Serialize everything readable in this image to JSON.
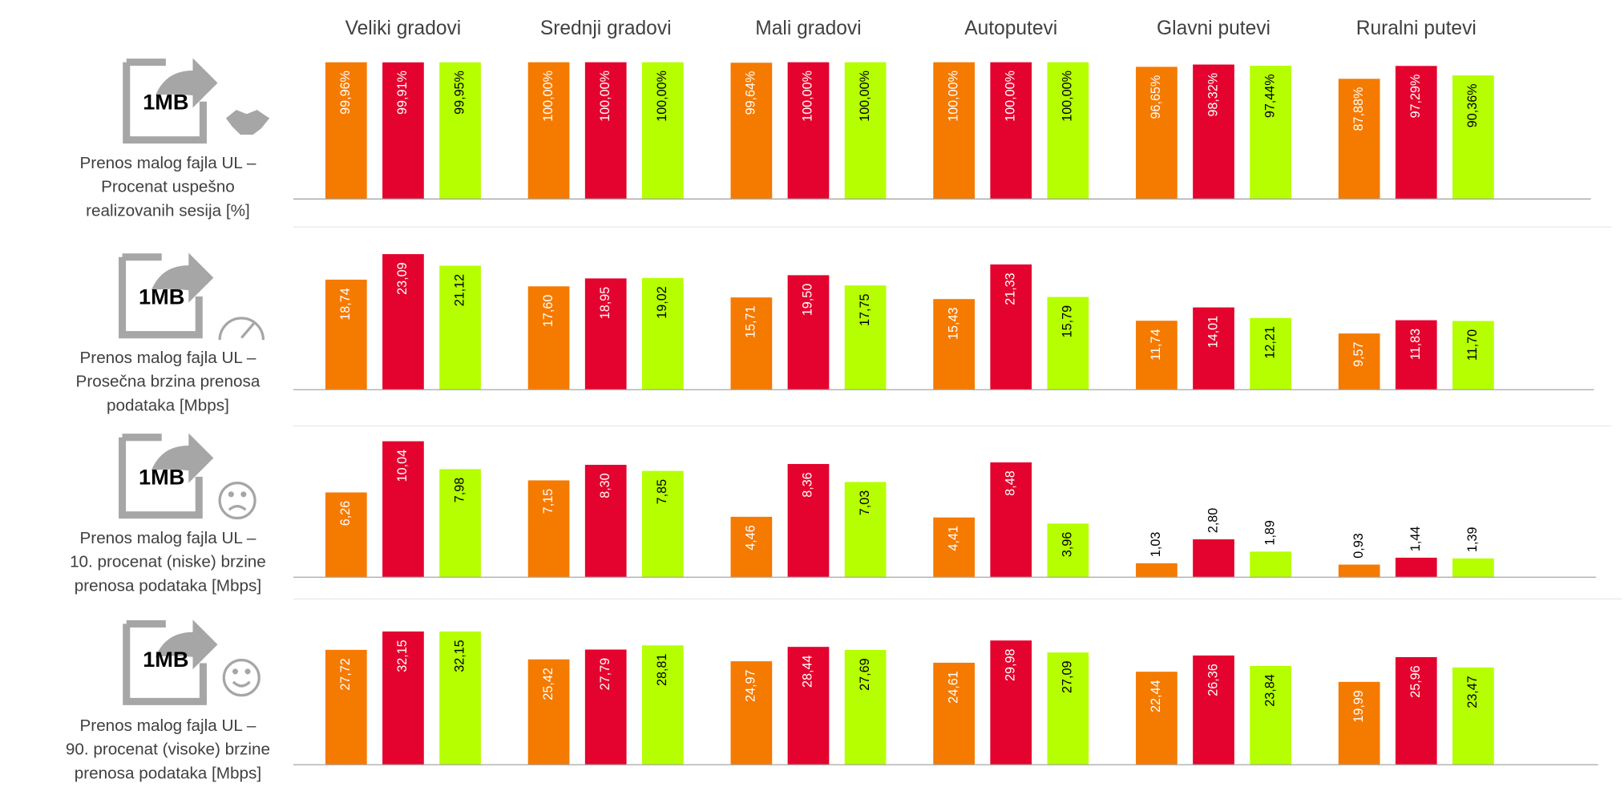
{
  "chart_data": [
    {
      "type": "bar",
      "categories": [
        "Veliki gradovi",
        "Srednji gradovi",
        "Mali gradovi",
        "Autoputevi",
        "Glavni putevi",
        "Ruralni putevi"
      ],
      "icon_label": "1MB",
      "title": [
        "Prenos malog fajla UL –",
        "Procenat uspešno",
        "realizovanih sesija [%]"
      ],
      "ylim": [
        0,
        100
      ],
      "series": [
        {
          "color": "#F57A00",
          "label_color": "#ffffff",
          "values": [
            99.96,
            100,
            99.64,
            100,
            96.65,
            87.88
          ],
          "value_labels": [
            "99,96%",
            "100,00%",
            "99,64%",
            "100,00%",
            "96,65%",
            "87,88%"
          ]
        },
        {
          "color": "#E4032E",
          "label_color": "#ffffff",
          "values": [
            99.91,
            100,
            100,
            100,
            98.32,
            97.29
          ],
          "value_labels": [
            "99,91%",
            "100,00%",
            "100,00%",
            "100,00%",
            "98,32%",
            "97,29%"
          ]
        },
        {
          "color": "#B5FF00",
          "label_color": "#000000",
          "values": [
            99.95,
            100,
            100,
            100,
            97.44,
            90.36
          ],
          "value_labels": [
            "99,95%",
            "100,00%",
            "100,00%",
            "100,00%",
            "97,44%",
            "90,36%"
          ]
        }
      ]
    },
    {
      "type": "bar",
      "icon_label": "1MB",
      "title": [
        "Prenos malog fajla UL –",
        "Prosečna brzina prenosa",
        "podataka [Mbps]"
      ],
      "ylim": [
        0,
        23.3
      ],
      "series": [
        {
          "color": "#F57A00",
          "label_color": "#ffffff",
          "values": [
            18.74,
            17.6,
            15.71,
            15.43,
            11.74,
            9.57
          ],
          "value_labels": [
            "18,74",
            "17,60",
            "15,71",
            "15,43",
            "11,74",
            "9,57"
          ]
        },
        {
          "color": "#E4032E",
          "label_color": "#ffffff",
          "values": [
            23.09,
            18.95,
            19.5,
            21.33,
            14.01,
            11.83
          ],
          "value_labels": [
            "23,09",
            "18,95",
            "19,50",
            "21,33",
            "14,01",
            "11,83"
          ]
        },
        {
          "color": "#B5FF00",
          "label_color": "#000000",
          "values": [
            21.12,
            19.02,
            17.75,
            15.79,
            12.21,
            11.7
          ],
          "value_labels": [
            "21,12",
            "19,02",
            "17,75",
            "15,79",
            "12,21",
            "11,70"
          ]
        }
      ]
    },
    {
      "type": "bar",
      "icon_label": "1MB",
      "title": [
        "Prenos malog fajla UL –",
        "10. procenat (niske) brzine",
        "prenosa podataka [Mbps]"
      ],
      "ylim": [
        0,
        10.1
      ],
      "series": [
        {
          "color": "#F57A00",
          "label_color": "#ffffff",
          "values": [
            6.26,
            7.15,
            4.46,
            4.41,
            1.03,
            0.93
          ],
          "value_labels": [
            "6,26",
            "7,15",
            "4,46",
            "4,41",
            "1,03",
            "0,93"
          ]
        },
        {
          "color": "#E4032E",
          "label_color": "#ffffff",
          "values": [
            10.04,
            8.3,
            8.36,
            8.48,
            2.8,
            1.44
          ],
          "value_labels": [
            "10,04",
            "8,30",
            "8,36",
            "8,48",
            "2,80",
            "1,44"
          ]
        },
        {
          "color": "#B5FF00",
          "label_color": "#000000",
          "values": [
            7.98,
            7.85,
            7.03,
            3.96,
            1.89,
            1.39
          ],
          "value_labels": [
            "7,98",
            "7,85",
            "7,03",
            "3,96",
            "1,89",
            "1,39"
          ]
        }
      ]
    },
    {
      "type": "bar",
      "icon_label": "1MB",
      "title": [
        "Prenos malog fajla UL –",
        "90. procenat (visoke) brzine",
        "prenosa podataka [Mbps]"
      ],
      "ylim": [
        0,
        33
      ],
      "series": [
        {
          "color": "#F57A00",
          "label_color": "#ffffff",
          "values": [
            27.72,
            25.42,
            24.97,
            24.61,
            22.44,
            19.99
          ],
          "value_labels": [
            "27,72",
            "25,42",
            "24,97",
            "24,61",
            "22,44",
            "19,99"
          ]
        },
        {
          "color": "#E4032E",
          "label_color": "#ffffff",
          "values": [
            32.15,
            27.79,
            28.44,
            29.98,
            26.36,
            25.96
          ],
          "value_labels": [
            "32,15",
            "27,79",
            "28,44",
            "29,98",
            "26,36",
            "25,96"
          ]
        },
        {
          "color": "#B5FF00",
          "label_color": "#000000",
          "values": [
            32.15,
            28.81,
            27.69,
            27.09,
            23.84,
            23.47
          ],
          "value_labels": [
            "32,15",
            "28,81",
            "27,69",
            "27,09",
            "23,84",
            "23,47"
          ]
        }
      ]
    }
  ]
}
